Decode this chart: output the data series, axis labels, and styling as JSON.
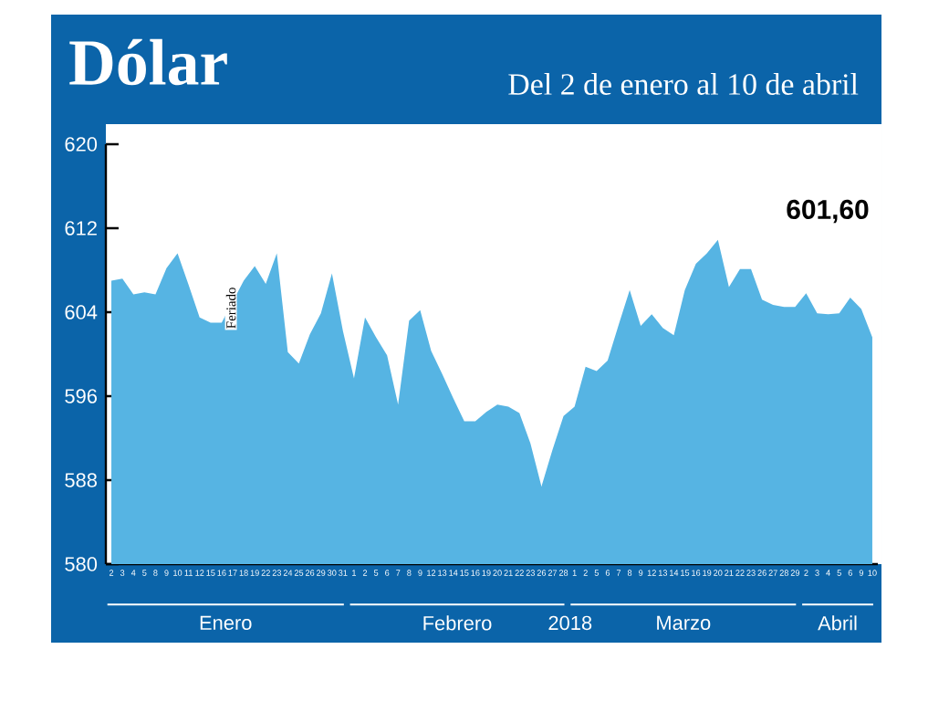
{
  "chart_data": {
    "type": "area",
    "title": "Dólar",
    "subtitle": "Del 2 de enero al 10 de abril",
    "categories": [
      "2",
      "3",
      "4",
      "5",
      "8",
      "9",
      "10",
      "11",
      "12",
      "15",
      "16",
      "17",
      "18",
      "19",
      "22",
      "23",
      "24",
      "25",
      "26",
      "29",
      "30",
      "31",
      "1",
      "2",
      "5",
      "6",
      "7",
      "8",
      "9",
      "12",
      "13",
      "14",
      "15",
      "16",
      "19",
      "20",
      "21",
      "22",
      "23",
      "26",
      "27",
      "28",
      "1",
      "2",
      "5",
      "6",
      "7",
      "8",
      "9",
      "12",
      "13",
      "14",
      "15",
      "16",
      "19",
      "20",
      "21",
      "22",
      "23",
      "26",
      "27",
      "28",
      "29",
      "2",
      "3",
      "4",
      "5",
      "6",
      "9",
      "10"
    ],
    "values": [
      607.0,
      607.2,
      605.7,
      605.9,
      605.7,
      608.2,
      609.6,
      606.6,
      603.5,
      603.0,
      603.0,
      null,
      607.0,
      608.4,
      606.7,
      609.6,
      600.2,
      599.1,
      601.9,
      603.9,
      607.7,
      602.2,
      597.7,
      603.5,
      601.6,
      599.9,
      595.2,
      603.2,
      604.2,
      600.3,
      598.1,
      595.8,
      593.6,
      593.6,
      594.5,
      595.2,
      595.0,
      594.4,
      591.5,
      587.4,
      590.9,
      594.1,
      595.0,
      598.8,
      598.4,
      599.4,
      602.8,
      606.1,
      602.7,
      603.8,
      602.5,
      601.8,
      606.1,
      608.6,
      609.6,
      610.9,
      606.4,
      608.1,
      608.1,
      605.2,
      604.7,
      604.5,
      604.5,
      605.8,
      603.9,
      603.8,
      603.9,
      605.4,
      604.3,
      601.6
    ],
    "color": "#56b4e3",
    "ylim": [
      580,
      620
    ],
    "yticks": [
      580,
      588,
      596,
      604,
      612,
      620
    ],
    "annotations": [
      "601,60",
      "Feriado",
      "Enero",
      "Febrero",
      "2018",
      "Marzo",
      "Abril"
    ]
  }
}
